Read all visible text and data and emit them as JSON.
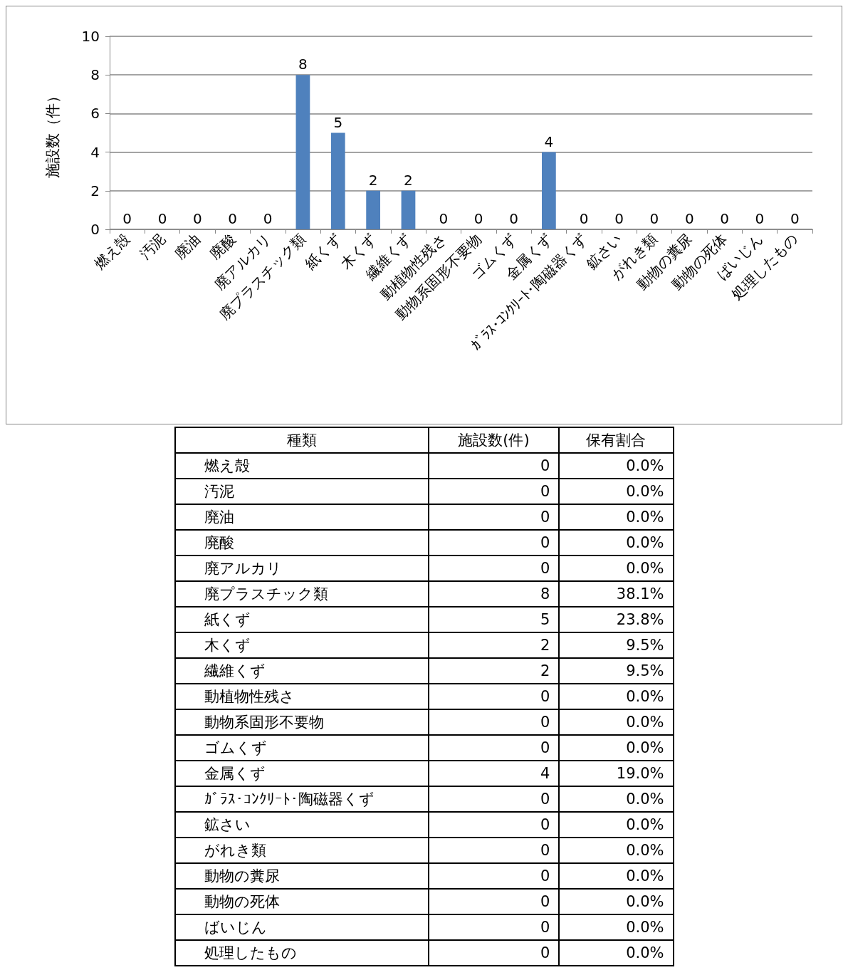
{
  "chart_data": [
    {
      "type": "bar",
      "ylabel": "施設数（件）",
      "categories": [
        "燃え殻",
        "汚泥",
        "廃油",
        "廃酸",
        "廃アルカリ",
        "廃プラスチック類",
        "紙くず",
        "木くず",
        "繊維くず",
        "動植物性残さ",
        "動物系固形不要物",
        "ゴムくず",
        "金属くず",
        "ｶﾞﾗｽ･ｺﾝｸﾘｰﾄ･陶磁器くず",
        "鉱さい",
        "がれき類",
        "動物の糞尿",
        "動物の死体",
        "ばいじん",
        "処理したもの"
      ],
      "values": [
        0,
        0,
        0,
        0,
        0,
        8,
        5,
        2,
        2,
        0,
        0,
        0,
        4,
        0,
        0,
        0,
        0,
        0,
        0,
        0
      ],
      "color": "#4f81bd",
      "ylim": [
        0,
        10
      ],
      "yticks": [
        0,
        2,
        4,
        6,
        8,
        10
      ],
      "grid": "y",
      "data_labels": true
    },
    {
      "type": "other",
      "xlabel": "種類",
      "data_labels": true,
      "categories": [
        "燃え殻",
        "汚泥",
        "廃油",
        "廃酸",
        "廃アルカリ",
        "廃プラスチック類",
        "紙くず",
        "木くず",
        "繊維くず",
        "動植物性残さ",
        "動物系固形不要物",
        "ゴムくず",
        "金属くず",
        "ｶﾞﾗｽ･ｺﾝｸﾘｰﾄ･陶磁器くず",
        "鉱さい",
        "がれき類",
        "動物の糞尿",
        "動物の死体",
        "ばいじん",
        "処理したもの"
      ],
      "series": [
        {
          "name": "施設数(件)",
          "values": [
            0,
            0,
            0,
            0,
            0,
            8,
            5,
            2,
            2,
            0,
            0,
            0,
            4,
            0,
            0,
            0,
            0,
            0,
            0,
            0
          ]
        },
        {
          "name": "保有割合",
          "values": [
            0,
            0,
            0,
            0,
            0,
            38.1,
            23.8,
            9.5,
            9.5,
            0,
            0,
            0,
            19.0,
            0,
            0,
            0,
            0,
            0,
            0,
            0
          ],
          "value_labels": [
            "0.0%",
            "0.0%",
            "0.0%",
            "0.0%",
            "0.0%",
            "38.1%",
            "23.8%",
            "9.5%",
            "9.5%",
            "0.0%",
            "0.0%",
            "0.0%",
            "19.0%",
            "0.0%",
            "0.0%",
            "0.0%",
            "0.0%",
            "0.0%",
            "0.0%",
            "0.0%"
          ]
        }
      ]
    }
  ]
}
